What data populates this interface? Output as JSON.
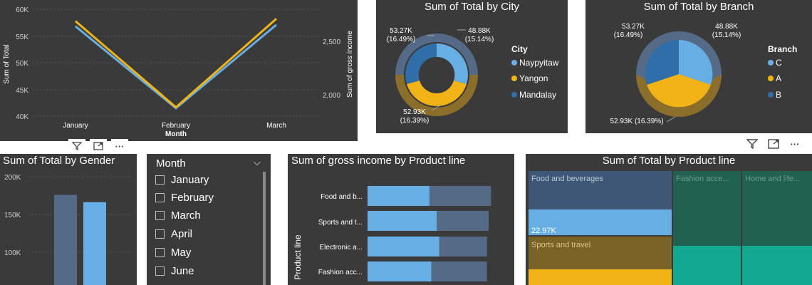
{
  "colors": {
    "bg": "#3a3a3a",
    "gold": "#f2b316",
    "lightblue": "#66aee3",
    "midblue": "#2f6ea8",
    "teal": "#13a891",
    "darkteal": "#21614f",
    "steel": "#3a5070"
  },
  "line_chart": {
    "yticks_left": [
      "60K",
      "55K",
      "50K",
      "45K",
      "40K"
    ],
    "yticks_right": [
      "2,500",
      "2,000"
    ],
    "ylabel_left": "Sum of Total",
    "ylabel_right": "Sum of gross income",
    "xlabel": "Month",
    "chart_data": {
      "type": "line",
      "categories": [
        "January",
        "February",
        "March"
      ],
      "series": [
        {
          "name": "Sum of Total",
          "values": [
            56800,
            41500,
            57100
          ],
          "color": "#66aee3"
        },
        {
          "name": "Sum of gross income",
          "values": [
            2700,
            1975,
            2720
          ],
          "color": "#f2b316"
        }
      ],
      "ylim_left": [
        40000,
        60000
      ],
      "ylim_right": [
        1900,
        2800
      ]
    }
  },
  "city_chart": {
    "title": "Sum of Total by City",
    "legend_title": "City",
    "legend": [
      {
        "label": "Naypyitaw",
        "color": "#66aee3"
      },
      {
        "label": "Yangon",
        "color": "#f2b316"
      },
      {
        "label": "Mandalay",
        "color": "#2f6ea8"
      }
    ],
    "labels": {
      "top_left": "53.27K",
      "top_left_pct": "(16.49%)",
      "top_right": "48.88K",
      "top_right_pct": "(15.14%)",
      "bottom": "52.93K",
      "bottom_pct": "(16.39%)"
    },
    "chart_data": {
      "type": "pie",
      "categories": [
        "Naypyitaw",
        "Yangon",
        "Mandalay"
      ],
      "values": [
        53270,
        48880,
        52930
      ]
    }
  },
  "branch_chart": {
    "title": "Sum of Total by Branch",
    "legend_title": "Branch",
    "legend": [
      {
        "label": "C",
        "color": "#66aee3"
      },
      {
        "label": "A",
        "color": "#f2b316"
      },
      {
        "label": "B",
        "color": "#2f6ea8"
      }
    ],
    "labels": {
      "top_left": "53.27K",
      "top_left_pct": "(16.49%)",
      "top_right": "48.88K",
      "top_right_pct": "(15.14%)",
      "bottom": "52.93K (16.39%)"
    },
    "chart_data": {
      "type": "pie",
      "categories": [
        "C",
        "A",
        "B"
      ],
      "values": [
        53270,
        48880,
        52930
      ]
    }
  },
  "gender_chart": {
    "title": "Sum of Total by Gender",
    "yticks": [
      "200K",
      "150K",
      "100K"
    ],
    "chart_data": {
      "type": "bar",
      "values": [
        167880,
        155080
      ],
      "ylim": [
        0,
        200000
      ]
    }
  },
  "slicer": {
    "title": "Month",
    "items": [
      "January",
      "February",
      "March",
      "April",
      "May",
      "June"
    ]
  },
  "gross_chart": {
    "title": "Sum of gross income by Product line",
    "ylabel": "Product line",
    "categories": [
      "Food and b...",
      "Sports and t...",
      "Electronic a...",
      "Fashion acc..."
    ],
    "chart_data": {
      "type": "bar",
      "categories": [
        "Food and b...",
        "Sports and t...",
        "Electronic a...",
        "Fashion acc..."
      ],
      "values": [
        2673,
        2625,
        2588,
        2586
      ],
      "highlight": [
        1340,
        1500,
        1550,
        1380
      ]
    }
  },
  "treemap": {
    "title": "Sum of Total by Product line",
    "tiles": {
      "food": "Food and beverages",
      "food_value": "22.97K",
      "sports": "Sports and travel",
      "fashion": "Fashion acce...",
      "home": "Home and life..."
    }
  }
}
